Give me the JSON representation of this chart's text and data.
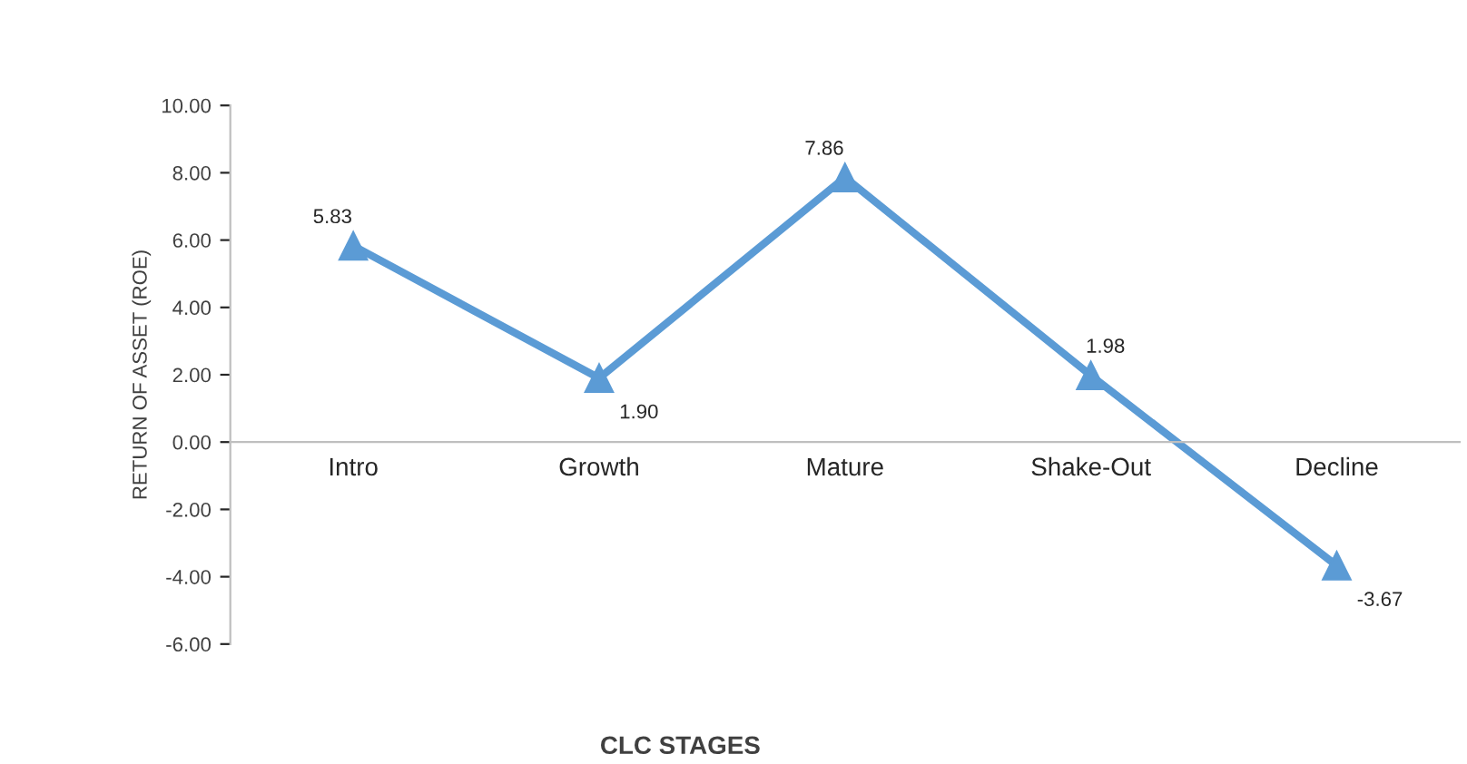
{
  "chart_data": {
    "type": "line",
    "xlabel": "CLC STAGES",
    "ylabel": "RETURN OF ASSET (ROE)",
    "categories": [
      "Intro",
      "Growth",
      "Mature",
      "Shake-Out",
      "Decline"
    ],
    "series": [
      {
        "color": "#5b9bd5",
        "values": [
          5.83,
          1.9,
          7.86,
          1.98,
          -3.67
        ],
        "value_labels": [
          "5.83",
          "1.90",
          "7.86",
          "1.98",
          "-3.67"
        ]
      }
    ],
    "ylim": [
      -6,
      10
    ],
    "yticks": [
      {
        "value": -6,
        "label": "-6.00"
      },
      {
        "value": -4,
        "label": "-4.00"
      },
      {
        "value": -2,
        "label": "-2.00"
      },
      {
        "value": 0,
        "label": "0.00"
      },
      {
        "value": 2,
        "label": "2.00"
      },
      {
        "value": 4,
        "label": "4.00"
      },
      {
        "value": 6,
        "label": "6.00"
      },
      {
        "value": 8,
        "label": "8.00"
      },
      {
        "value": 10,
        "label": "10.00"
      }
    ],
    "marker": "triangle",
    "line_style": "solid",
    "grid": false,
    "legend": false
  }
}
